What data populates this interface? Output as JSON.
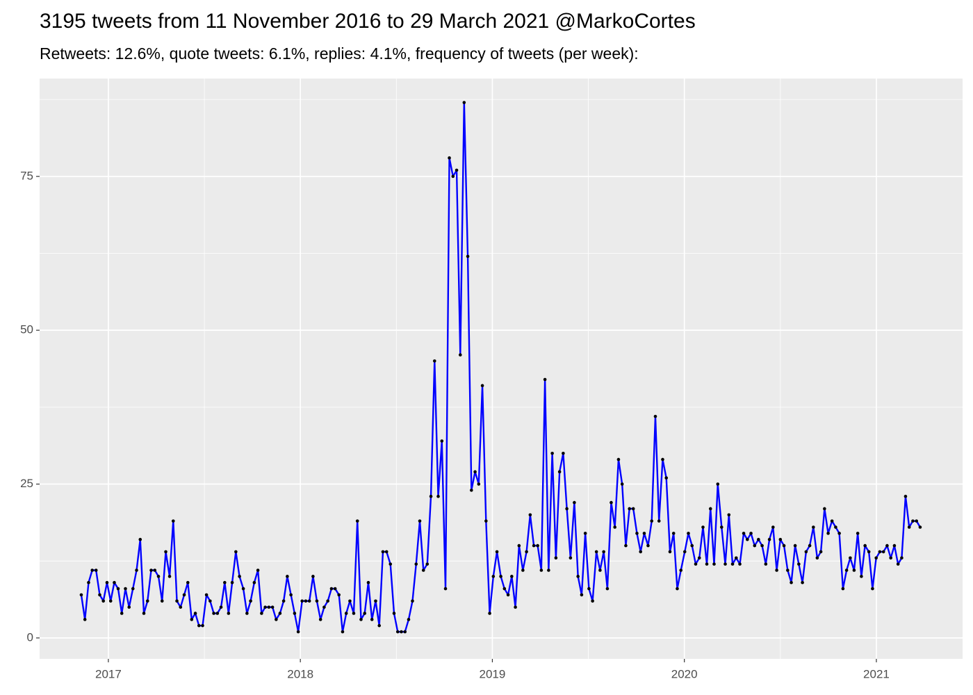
{
  "chart_data": {
    "type": "line",
    "title": "3195 tweets from 11 November 2016 to 29 March 2021 @MarkoCortes",
    "subtitle": "Retweets: 12.6%, quote tweets: 6.1%, replies: 4.1%, frequency of tweets (per week):",
    "color": "#0000ff",
    "point_color": "#000000",
    "grid": true,
    "xlim": [
      2016.642,
      2021.449
    ],
    "xticks": [
      2017,
      2018,
      2019,
      2020,
      2021
    ],
    "ylim": [
      -3.4,
      90.9
    ],
    "yticks": [
      0,
      25,
      50,
      75
    ],
    "x": [
      2016.859,
      2016.878,
      2016.897,
      2016.916,
      2016.936,
      2016.955,
      2016.974,
      2016.993,
      2017.012,
      2017.031,
      2017.051,
      2017.07,
      2017.089,
      2017.108,
      2017.128,
      2017.147,
      2017.166,
      2017.185,
      2017.204,
      2017.223,
      2017.242,
      2017.261,
      2017.28,
      2017.299,
      2017.319,
      2017.338,
      2017.357,
      2017.376,
      2017.395,
      2017.414,
      2017.434,
      2017.453,
      2017.472,
      2017.491,
      2017.511,
      2017.53,
      2017.549,
      2017.568,
      2017.587,
      2017.606,
      2017.626,
      2017.645,
      2017.664,
      2017.683,
      2017.703,
      2017.722,
      2017.741,
      2017.76,
      2017.779,
      2017.798,
      2017.817,
      2017.836,
      2017.855,
      2017.874,
      2017.894,
      2017.913,
      2017.932,
      2017.951,
      2017.97,
      2017.989,
      2018.009,
      2018.028,
      2018.047,
      2018.066,
      2018.086,
      2018.105,
      2018.124,
      2018.143,
      2018.162,
      2018.181,
      2018.201,
      2018.22,
      2018.239,
      2018.258,
      2018.278,
      2018.297,
      2018.316,
      2018.335,
      2018.354,
      2018.373,
      2018.392,
      2018.411,
      2018.43,
      2018.449,
      2018.469,
      2018.488,
      2018.507,
      2018.526,
      2018.545,
      2018.564,
      2018.584,
      2018.603,
      2018.622,
      2018.641,
      2018.661,
      2018.68,
      2018.699,
      2018.718,
      2018.737,
      2018.756,
      2018.776,
      2018.795,
      2018.814,
      2018.833,
      2018.853,
      2018.872,
      2018.891,
      2018.91,
      2018.929,
      2018.948,
      2018.967,
      2018.986,
      2019.005,
      2019.024,
      2019.044,
      2019.063,
      2019.082,
      2019.101,
      2019.12,
      2019.139,
      2019.159,
      2019.178,
      2019.197,
      2019.216,
      2019.236,
      2019.255,
      2019.274,
      2019.293,
      2019.312,
      2019.331,
      2019.35,
      2019.369,
      2019.388,
      2019.407,
      2019.427,
      2019.446,
      2019.465,
      2019.484,
      2019.503,
      2019.522,
      2019.542,
      2019.561,
      2019.58,
      2019.599,
      2019.619,
      2019.638,
      2019.657,
      2019.676,
      2019.695,
      2019.714,
      2019.734,
      2019.753,
      2019.772,
      2019.791,
      2019.811,
      2019.83,
      2019.849,
      2019.868,
      2019.887,
      2019.906,
      2019.925,
      2019.944,
      2019.963,
      2019.982,
      2020.002,
      2020.021,
      2020.04,
      2020.059,
      2020.078,
      2020.097,
      2020.117,
      2020.136,
      2020.155,
      2020.174,
      2020.194,
      2020.213,
      2020.232,
      2020.251,
      2020.27,
      2020.289,
      2020.309,
      2020.328,
      2020.347,
      2020.366,
      2020.386,
      2020.405,
      2020.424,
      2020.443,
      2020.462,
      2020.481,
      2020.5,
      2020.519,
      2020.538,
      2020.557,
      2020.577,
      2020.596,
      2020.615,
      2020.634,
      2020.653,
      2020.672,
      2020.692,
      2020.711,
      2020.73,
      2020.749,
      2020.769,
      2020.788,
      2020.807,
      2020.826,
      2020.845,
      2020.864,
      2020.884,
      2020.903,
      2020.922,
      2020.941,
      2020.961,
      2020.98,
      2020.999,
      2021.018,
      2021.037,
      2021.056,
      2021.075,
      2021.094,
      2021.113,
      2021.132,
      2021.152,
      2021.171,
      2021.19,
      2021.209,
      2021.228
    ],
    "values": [
      7,
      3,
      9,
      11,
      11,
      7,
      6,
      9,
      6,
      9,
      8,
      4,
      8,
      5,
      8,
      11,
      16,
      4,
      6,
      11,
      11,
      10,
      6,
      14,
      10,
      19,
      6,
      5,
      7,
      9,
      3,
      4,
      2,
      2,
      7,
      6,
      4,
      4,
      5,
      9,
      4,
      9,
      14,
      10,
      8,
      4,
      6,
      9,
      11,
      4,
      5,
      5,
      5,
      3,
      4,
      6,
      10,
      7,
      4,
      1,
      6,
      6,
      6,
      10,
      6,
      3,
      5,
      6,
      8,
      8,
      7,
      1,
      4,
      6,
      4,
      19,
      3,
      4,
      9,
      3,
      6,
      2,
      14,
      14,
      12,
      4,
      1,
      1,
      1,
      3,
      6,
      12,
      19,
      11,
      12,
      23,
      45,
      23,
      32,
      8,
      78,
      75,
      76,
      46,
      87,
      62,
      24,
      27,
      25,
      41,
      19,
      4,
      10,
      14,
      10,
      8,
      7,
      10,
      5,
      15,
      11,
      14,
      20,
      15,
      15,
      11,
      42,
      11,
      30,
      13,
      27,
      30,
      21,
      13,
      22,
      10,
      7,
      17,
      8,
      6,
      14,
      11,
      14,
      8,
      22,
      18,
      29,
      25,
      15,
      21,
      21,
      17,
      14,
      17,
      15,
      19,
      36,
      19,
      29,
      26,
      14,
      17,
      8,
      11,
      14,
      17,
      15,
      12,
      13,
      18,
      12,
      21,
      12,
      25,
      18,
      12,
      20,
      12,
      13,
      12,
      17,
      16,
      17,
      15,
      16,
      15,
      12,
      16,
      18,
      11,
      16,
      15,
      11,
      9,
      15,
      12,
      9,
      14,
      15,
      18,
      13,
      14,
      21,
      17,
      19,
      18,
      17,
      8,
      11,
      13,
      11,
      17,
      10,
      15,
      14,
      8,
      13,
      14,
      14,
      15,
      13,
      15,
      12,
      13,
      23,
      18,
      19,
      19,
      18
    ]
  }
}
